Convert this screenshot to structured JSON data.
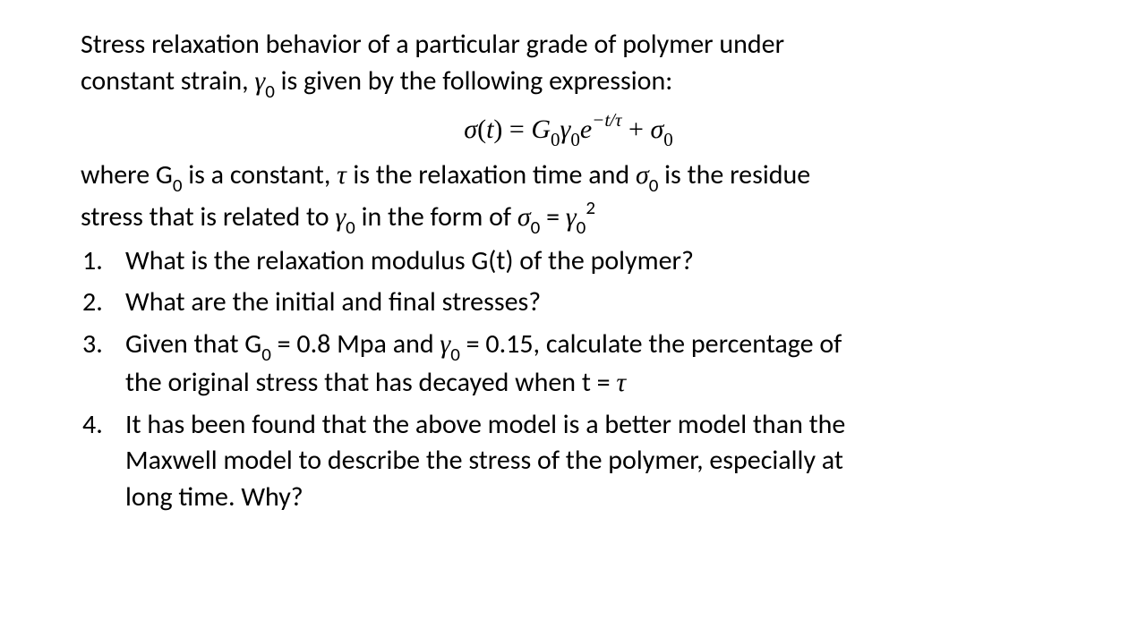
{
  "intro_l1": "Stress relaxation behavior of a particular grade of polymer under",
  "intro_l2": "constant strain, ",
  "intro_gamma": "γ",
  "intro_sub0": "0",
  "intro_l2b": " is given by the following expression:",
  "eq_sigma": "σ",
  "eq_t_open": "(",
  "eq_t": "t",
  "eq_t_close": ") = ",
  "eq_G": "G",
  "eq_sub0a": "0",
  "eq_gamma": "γ",
  "eq_sub0b": "0",
  "eq_e": "e",
  "eq_exp": "−t/τ",
  "eq_plus": " + ",
  "eq_sigma2": "σ",
  "eq_sub0c": "0",
  "where_1": "where G",
  "where_sub0a": "0",
  "where_2": " is a constant, ",
  "where_tau": "τ ",
  "where_3": "is the relaxation time and ",
  "where_sigma": "σ",
  "where_sub0b": "0",
  "where_4": " is the residue",
  "where_l2a": "stress that is related to ",
  "where_gamma": "γ",
  "where_sub0c": "0",
  "where_l2b": " in the form of ",
  "where_sigma2": "σ",
  "where_sub0d": "0",
  "where_eq": " = ",
  "where_gamma2": "γ",
  "where_sub0e": "0",
  "where_sup2": "2",
  "q1_num": "1.",
  "q1_text": "What is the relaxation modulus G(t) of the polymer?",
  "q2_num": "2.",
  "q2_text": "What are the initial and final stresses?",
  "q3_num": "3.",
  "q3_a": "Given that G",
  "q3_sub0a": "0",
  "q3_b": " = 0.8 Mpa and ",
  "q3_gamma": "γ",
  "q3_sub0b": "0",
  "q3_c": " = 0.15, calculate the percentage of",
  "q3_l2a": "the original stress that has decayed when t = ",
  "q3_tau": "τ",
  "q4_num": "4.",
  "q4_l1": "It has been found that the above model is a better model than the",
  "q4_l2": "Maxwell model to describe the stress of the polymer, especially at",
  "q4_l3": "long time. Why?"
}
